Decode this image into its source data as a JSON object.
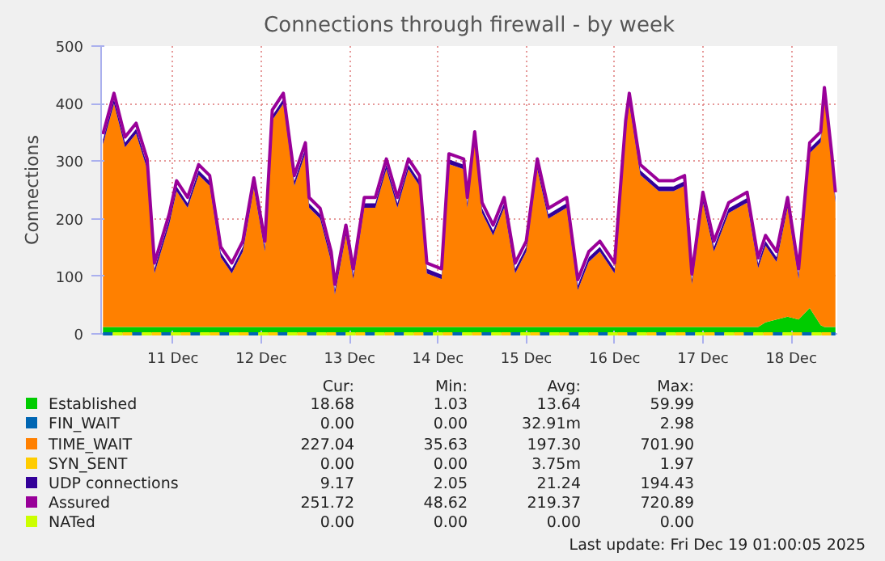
{
  "chart_data": {
    "type": "area",
    "title": "Connections through firewall - by week",
    "ylabel": "Connections",
    "stacked": true,
    "grid": true,
    "legend": "bottom",
    "x": [
      "2025-12-10T05:00",
      "2025-12-10T08:00",
      "2025-12-10T11:00",
      "2025-12-10T14:00",
      "2025-12-10T17:00",
      "2025-12-10T19:00",
      "2025-12-10T23:00",
      "2025-12-11T01:00",
      "2025-12-11T04:00",
      "2025-12-11T07:00",
      "2025-12-11T10:00",
      "2025-12-11T13:00",
      "2025-12-11T16:00",
      "2025-12-11T19:00",
      "2025-12-11T22:00",
      "2025-12-12T01:00",
      "2025-12-12T03:00",
      "2025-12-12T06:00",
      "2025-12-12T09:00",
      "2025-12-12T12:00",
      "2025-12-12T13:00",
      "2025-12-12T16:00",
      "2025-12-12T19:00",
      "2025-12-12T20:00",
      "2025-12-12T23:00",
      "2025-12-13T01:00",
      "2025-12-13T04:00",
      "2025-12-13T07:00",
      "2025-12-13T10:00",
      "2025-12-13T13:00",
      "2025-12-13T16:00",
      "2025-12-13T19:00",
      "2025-12-13T21:00",
      "2025-12-14T01:00",
      "2025-12-14T03:00",
      "2025-12-14T07:00",
      "2025-12-14T08:00",
      "2025-12-14T10:00",
      "2025-12-14T12:00",
      "2025-12-14T15:00",
      "2025-12-14T18:00",
      "2025-12-14T21:00",
      "2025-12-15T00:00",
      "2025-12-15T03:00",
      "2025-12-15T06:00",
      "2025-12-15T11:00",
      "2025-12-15T14:00",
      "2025-12-15T17:00",
      "2025-12-15T20:00",
      "2025-12-16T00:00",
      "2025-12-16T03:00",
      "2025-12-16T04:00",
      "2025-12-16T07:00",
      "2025-12-16T12:00",
      "2025-12-16T16:00",
      "2025-12-16T19:00",
      "2025-12-16T21:00",
      "2025-12-17T00:00",
      "2025-12-17T03:00",
      "2025-12-17T07:00",
      "2025-12-17T12:00",
      "2025-12-17T15:00",
      "2025-12-17T17:00",
      "2025-12-17T20:00",
      "2025-12-17T23:00",
      "2025-12-18T02:00",
      "2025-12-18T05:00",
      "2025-12-18T08:00",
      "2025-12-18T09:00",
      "2025-12-18T11:00",
      "2025-12-18T12:00"
    ],
    "xlim": [
      "2025-12-10T04:30",
      "2025-12-18T12:30"
    ],
    "xticks": [
      {
        "value": "2025-12-11",
        "label": "11 Dec"
      },
      {
        "value": "2025-12-12",
        "label": "12 Dec"
      },
      {
        "value": "2025-12-13",
        "label": "13 Dec"
      },
      {
        "value": "2025-12-14",
        "label": "14 Dec"
      },
      {
        "value": "2025-12-15",
        "label": "15 Dec"
      },
      {
        "value": "2025-12-16",
        "label": "16 Dec"
      },
      {
        "value": "2025-12-17",
        "label": "17 Dec"
      },
      {
        "value": "2025-12-18",
        "label": "18 Dec"
      }
    ],
    "ylim": [
      0,
      500
    ],
    "yticks": [
      0,
      100,
      200,
      300,
      400,
      500
    ],
    "series": [
      {
        "name": "Established",
        "color": "#00cc00",
        "values": [
          12,
          12,
          12,
          12,
          12,
          12,
          12,
          12,
          12,
          12,
          12,
          12,
          12,
          12,
          12,
          12,
          12,
          12,
          12,
          12,
          12,
          12,
          12,
          12,
          12,
          12,
          12,
          12,
          12,
          12,
          12,
          12,
          12,
          12,
          12,
          12,
          12,
          12,
          12,
          12,
          12,
          12,
          12,
          12,
          12,
          12,
          12,
          12,
          12,
          12,
          12,
          12,
          12,
          12,
          12,
          12,
          12,
          12,
          12,
          12,
          12,
          12,
          20,
          25,
          30,
          25,
          45,
          15,
          12,
          12,
          12
        ]
      },
      {
        "name": "FIN_WAIT",
        "color": "#0066b3",
        "type": "line",
        "line_style": "dashed",
        "x": [
          "2025-12-10T05:00",
          "2025-12-18T12:00"
        ],
        "values": [
          0,
          0
        ]
      },
      {
        "name": "TIME_WAIT",
        "color": "#ff8000",
        "values": [
          317,
          388,
          312,
          336,
          274,
          93,
          178,
          236,
          207,
          264,
          245,
          121,
          93,
          131,
          241,
          131,
          359,
          388,
          245,
          302,
          207,
          188,
          113,
          56,
          159,
          83,
          207,
          207,
          274,
          207,
          274,
          245,
          93,
          83,
          283,
          274,
          207,
          321,
          198,
          159,
          207,
          93,
          131,
          274,
          188,
          207,
          64,
          113,
          131,
          93,
          340,
          388,
          264,
          236,
          236,
          245,
          74,
          216,
          131,
          198,
          216,
          102,
          133,
          100,
          189,
          70,
          269,
          318,
          398,
          283,
          216
        ]
      },
      {
        "name": "SYN_SENT",
        "color": "#ffcc00",
        "type": "line",
        "line_style": "dashed",
        "x": [
          "2025-12-10T05:00",
          "2025-12-18T12:00"
        ],
        "values": [
          0,
          0
        ]
      },
      {
        "name": "UDP connections",
        "color": "#330099",
        "values": [
          8,
          8,
          8,
          8,
          8,
          8,
          8,
          8,
          8,
          8,
          8,
          8,
          8,
          8,
          8,
          8,
          8,
          8,
          8,
          8,
          8,
          8,
          8,
          8,
          8,
          8,
          8,
          8,
          8,
          8,
          8,
          8,
          8,
          8,
          8,
          8,
          8,
          8,
          8,
          8,
          8,
          8,
          8,
          8,
          8,
          8,
          8,
          8,
          8,
          8,
          8,
          8,
          8,
          8,
          8,
          8,
          8,
          8,
          8,
          8,
          8,
          8,
          8,
          8,
          8,
          8,
          8,
          8,
          8,
          8,
          8
        ]
      },
      {
        "name": "Assured",
        "color": "#990099",
        "type": "line",
        "values": [
          347,
          418,
          342,
          366,
          304,
          123,
          208,
          266,
          237,
          294,
          275,
          151,
          123,
          161,
          271,
          161,
          389,
          418,
          275,
          332,
          237,
          218,
          143,
          86,
          189,
          113,
          237,
          237,
          304,
          237,
          304,
          275,
          123,
          113,
          313,
          304,
          237,
          351,
          228,
          189,
          237,
          123,
          161,
          304,
          218,
          237,
          94,
          143,
          161,
          123,
          370,
          418,
          294,
          266,
          266,
          275,
          104,
          246,
          161,
          228,
          246,
          132,
          171,
          143,
          237,
          113,
          332,
          351,
          428,
          313,
          246
        ]
      },
      {
        "name": "NATed",
        "color": "#ccff00",
        "type": "line",
        "line_style": "dashed",
        "x": [
          "2025-12-10T05:00",
          "2025-12-18T12:00"
        ],
        "values": [
          0,
          0
        ]
      }
    ],
    "annotations": [
      "Cur:",
      "Min:",
      "Avg:",
      "Max:",
      "18.68",
      "1.03",
      "13.64",
      "59.99",
      "0.00",
      "0.00",
      "32.91m",
      "2.98",
      "227.04",
      "35.63",
      "197.30",
      "701.90",
      "0.00",
      "0.00",
      "3.75m",
      "1.97",
      "9.17",
      "2.05",
      "21.24",
      "194.43",
      "251.72",
      "48.62",
      "219.37",
      "720.89",
      "0.00",
      "0.00",
      "0.00",
      "0.00",
      "Last update: Fri Dec 19 01:00:05 2025"
    ]
  }
}
